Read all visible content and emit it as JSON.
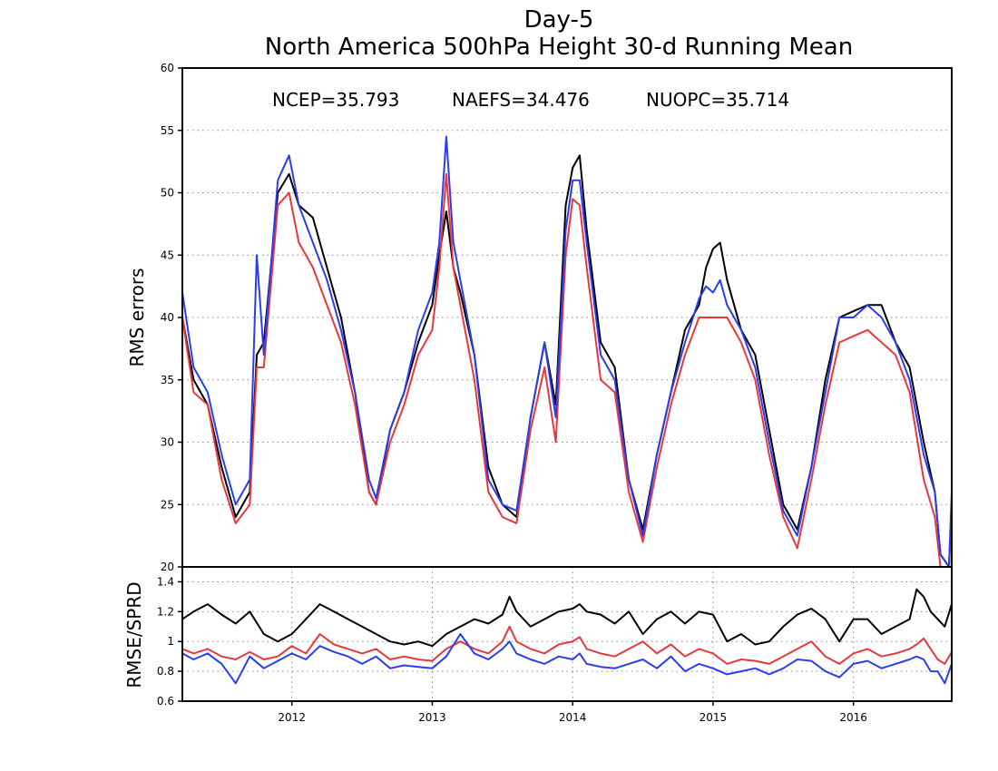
{
  "title_line1": "Day-5",
  "title_line2": "North America 500hPa Height 30-d Running Mean",
  "stats": [
    {
      "label": "NCEP=35.793",
      "color": "#000000"
    },
    {
      "label": "NAEFS=34.476",
      "color": "#e8383b"
    },
    {
      "label": "NUOPC=35.714",
      "color": "#2a3ef0"
    }
  ],
  "chart_data": [
    {
      "type": "line",
      "title": "North America 500hPa Height 30-d Running Mean",
      "ylabel": "RMS errors",
      "xlabel": "",
      "xlim": [
        2011.22,
        2016.7
      ],
      "ylim": [
        20,
        60
      ],
      "yticks": [
        "20",
        "25",
        "30",
        "35",
        "40",
        "45",
        "50",
        "55",
        "60"
      ],
      "grid": true,
      "series": [
        {
          "name": "NCEP",
          "color": "#000000",
          "x": [
            2011.22,
            2011.3,
            2011.4,
            2011.5,
            2011.6,
            2011.7,
            2011.75,
            2011.8,
            2011.9,
            2011.98,
            2012.05,
            2012.15,
            2012.25,
            2012.35,
            2012.45,
            2012.55,
            2012.6,
            2012.7,
            2012.8,
            2012.9,
            2013.0,
            2013.05,
            2013.1,
            2013.15,
            2013.2,
            2013.3,
            2013.4,
            2013.5,
            2013.6,
            2013.7,
            2013.8,
            2013.88,
            2013.95,
            2014.0,
            2014.05,
            2014.1,
            2014.2,
            2014.3,
            2014.4,
            2014.5,
            2014.6,
            2014.7,
            2014.8,
            2014.9,
            2014.95,
            2015.0,
            2015.05,
            2015.1,
            2015.2,
            2015.3,
            2015.4,
            2015.5,
            2015.6,
            2015.7,
            2015.8,
            2015.9,
            2016.0,
            2016.1,
            2016.2,
            2016.3,
            2016.4,
            2016.5,
            2016.58,
            2016.62,
            2016.65,
            2016.68,
            2016.7
          ],
          "y": [
            40,
            35,
            33,
            28,
            24,
            26,
            37,
            38,
            50,
            51.5,
            49,
            48,
            44,
            40,
            34,
            26,
            25,
            31,
            34,
            38,
            41,
            45,
            48.5,
            44,
            42,
            37,
            28,
            25,
            24,
            32,
            38,
            33,
            49,
            52,
            53,
            47,
            38,
            36,
            27,
            23,
            29,
            34,
            39,
            41,
            44,
            45.5,
            46,
            43,
            39,
            37,
            31,
            25,
            23,
            28,
            35,
            40,
            40.5,
            41,
            41,
            38,
            36,
            30,
            26,
            21,
            20.5,
            20,
            25
          ]
        },
        {
          "name": "NAEFS",
          "color": "#e8383b",
          "x": [
            2011.22,
            2011.3,
            2011.4,
            2011.5,
            2011.6,
            2011.7,
            2011.75,
            2011.8,
            2011.9,
            2011.98,
            2012.05,
            2012.15,
            2012.25,
            2012.35,
            2012.45,
            2012.55,
            2012.6,
            2012.7,
            2012.8,
            2012.9,
            2013.0,
            2013.05,
            2013.1,
            2013.15,
            2013.2,
            2013.3,
            2013.4,
            2013.5,
            2013.6,
            2013.7,
            2013.8,
            2013.88,
            2013.95,
            2014.0,
            2014.05,
            2014.1,
            2014.2,
            2014.3,
            2014.4,
            2014.5,
            2014.6,
            2014.7,
            2014.8,
            2014.9,
            2014.95,
            2015.0,
            2015.05,
            2015.1,
            2015.2,
            2015.3,
            2015.4,
            2015.5,
            2015.6,
            2015.7,
            2015.8,
            2015.9,
            2016.0,
            2016.1,
            2016.2,
            2016.3,
            2016.4,
            2016.5,
            2016.58,
            2016.62,
            2016.65,
            2016.68,
            2016.7
          ],
          "y": [
            40,
            34,
            33,
            27,
            23.5,
            25,
            36,
            36,
            49,
            50,
            46,
            44,
            41,
            38,
            33,
            26,
            25,
            30,
            33,
            37,
            39,
            44,
            51.5,
            44,
            41,
            35,
            26,
            24,
            23.5,
            31,
            36,
            30,
            45,
            49.5,
            49,
            44,
            35,
            34,
            26,
            22,
            28,
            33,
            37,
            40,
            40,
            40,
            40,
            40,
            38,
            35,
            29,
            24,
            21.5,
            27,
            33,
            38,
            38.5,
            39,
            38,
            37,
            34,
            27,
            24,
            20,
            19.5,
            19,
            24
          ]
        },
        {
          "name": "NUOPC",
          "color": "#2a3ef0",
          "x": [
            2011.22,
            2011.3,
            2011.4,
            2011.5,
            2011.6,
            2011.7,
            2011.75,
            2011.8,
            2011.9,
            2011.98,
            2012.05,
            2012.15,
            2012.25,
            2012.35,
            2012.45,
            2012.55,
            2012.6,
            2012.7,
            2012.8,
            2012.9,
            2013.0,
            2013.05,
            2013.1,
            2013.15,
            2013.2,
            2013.3,
            2013.4,
            2013.5,
            2013.6,
            2013.7,
            2013.8,
            2013.88,
            2013.95,
            2014.0,
            2014.05,
            2014.1,
            2014.2,
            2014.3,
            2014.4,
            2014.5,
            2014.6,
            2014.7,
            2014.8,
            2014.9,
            2014.95,
            2015.0,
            2015.05,
            2015.1,
            2015.2,
            2015.3,
            2015.4,
            2015.5,
            2015.6,
            2015.7,
            2015.8,
            2015.9,
            2016.0,
            2016.1,
            2016.2,
            2016.3,
            2016.4,
            2016.5,
            2016.58,
            2016.62,
            2016.65,
            2016.68,
            2016.7
          ],
          "y": [
            42,
            36,
            34,
            29,
            25,
            27,
            45,
            37,
            51,
            53,
            49,
            46,
            43,
            39,
            34,
            27,
            25.5,
            31,
            34,
            39,
            42,
            46,
            54.5,
            46,
            43,
            37,
            27,
            25,
            24.5,
            32,
            38,
            32,
            47,
            51,
            51,
            46,
            37,
            35,
            27,
            22.5,
            29,
            34,
            38,
            41.5,
            42.5,
            42,
            43,
            41,
            39,
            36,
            30,
            24.5,
            22.5,
            28,
            34,
            40,
            40,
            41,
            40,
            38,
            35,
            29,
            26,
            21,
            20.5,
            20,
            26
          ]
        }
      ]
    },
    {
      "type": "line",
      "title": "",
      "ylabel": "RMSE/SPRD",
      "xlabel": "",
      "xlim": [
        2011.22,
        2016.7
      ],
      "ylim": [
        0.6,
        1.5
      ],
      "yticks": [
        "0.6",
        "0.8",
        "1",
        "1.2",
        "1.4"
      ],
      "xticks": [
        "2012",
        "2013",
        "2014",
        "2015",
        "2016"
      ],
      "grid": true,
      "series": [
        {
          "name": "NCEP",
          "color": "#000000",
          "x": [
            2011.22,
            2011.3,
            2011.4,
            2011.5,
            2011.6,
            2011.7,
            2011.8,
            2011.9,
            2012.0,
            2012.1,
            2012.2,
            2012.3,
            2012.4,
            2012.5,
            2012.6,
            2012.7,
            2012.8,
            2012.9,
            2013.0,
            2013.1,
            2013.2,
            2013.3,
            2013.4,
            2013.5,
            2013.55,
            2013.6,
            2013.7,
            2013.8,
            2013.9,
            2014.0,
            2014.05,
            2014.1,
            2014.2,
            2014.3,
            2014.4,
            2014.5,
            2014.6,
            2014.7,
            2014.8,
            2014.9,
            2015.0,
            2015.1,
            2015.2,
            2015.3,
            2015.4,
            2015.5,
            2015.6,
            2015.7,
            2015.8,
            2015.9,
            2016.0,
            2016.1,
            2016.2,
            2016.3,
            2016.4,
            2016.45,
            2016.5,
            2016.55,
            2016.6,
            2016.65,
            2016.7
          ],
          "y": [
            1.15,
            1.2,
            1.25,
            1.18,
            1.12,
            1.2,
            1.05,
            1.0,
            1.05,
            1.15,
            1.25,
            1.2,
            1.15,
            1.1,
            1.05,
            1.0,
            0.98,
            1.0,
            0.97,
            1.05,
            1.1,
            1.15,
            1.12,
            1.18,
            1.3,
            1.2,
            1.1,
            1.15,
            1.2,
            1.22,
            1.25,
            1.2,
            1.18,
            1.12,
            1.2,
            1.05,
            1.15,
            1.2,
            1.12,
            1.2,
            1.18,
            1.0,
            1.05,
            0.98,
            1.0,
            1.1,
            1.18,
            1.22,
            1.15,
            1.0,
            1.15,
            1.15,
            1.05,
            1.1,
            1.15,
            1.35,
            1.3,
            1.2,
            1.15,
            1.1,
            1.25
          ]
        },
        {
          "name": "NAEFS",
          "color": "#e8383b",
          "x": [
            2011.22,
            2011.3,
            2011.4,
            2011.5,
            2011.6,
            2011.7,
            2011.8,
            2011.9,
            2012.0,
            2012.1,
            2012.2,
            2012.3,
            2012.4,
            2012.5,
            2012.6,
            2012.7,
            2012.8,
            2012.9,
            2013.0,
            2013.1,
            2013.2,
            2013.3,
            2013.4,
            2013.5,
            2013.55,
            2013.6,
            2013.7,
            2013.8,
            2013.9,
            2014.0,
            2014.05,
            2014.1,
            2014.2,
            2014.3,
            2014.4,
            2014.5,
            2014.6,
            2014.7,
            2014.8,
            2014.9,
            2015.0,
            2015.1,
            2015.2,
            2015.3,
            2015.4,
            2015.5,
            2015.6,
            2015.7,
            2015.8,
            2015.9,
            2016.0,
            2016.1,
            2016.2,
            2016.3,
            2016.4,
            2016.45,
            2016.5,
            2016.55,
            2016.6,
            2016.65,
            2016.7
          ],
          "y": [
            0.95,
            0.92,
            0.95,
            0.9,
            0.88,
            0.93,
            0.88,
            0.9,
            0.97,
            0.92,
            1.05,
            0.98,
            0.95,
            0.92,
            0.95,
            0.88,
            0.9,
            0.88,
            0.87,
            0.95,
            1.0,
            0.95,
            0.92,
            1.0,
            1.1,
            1.0,
            0.95,
            0.92,
            0.98,
            1.0,
            1.03,
            0.95,
            0.92,
            0.9,
            0.95,
            1.0,
            0.92,
            0.98,
            0.9,
            0.95,
            0.92,
            0.85,
            0.88,
            0.87,
            0.85,
            0.9,
            0.95,
            1.0,
            0.9,
            0.85,
            0.92,
            0.95,
            0.9,
            0.92,
            0.95,
            0.98,
            1.02,
            0.95,
            0.88,
            0.85,
            0.93
          ]
        },
        {
          "name": "NUOPC",
          "color": "#2a3ef0",
          "x": [
            2011.22,
            2011.3,
            2011.4,
            2011.5,
            2011.6,
            2011.7,
            2011.8,
            2011.9,
            2012.0,
            2012.1,
            2012.2,
            2012.3,
            2012.4,
            2012.5,
            2012.6,
            2012.7,
            2012.8,
            2012.9,
            2013.0,
            2013.1,
            2013.2,
            2013.3,
            2013.4,
            2013.5,
            2013.55,
            2013.6,
            2013.7,
            2013.8,
            2013.9,
            2014.0,
            2014.05,
            2014.1,
            2014.2,
            2014.3,
            2014.4,
            2014.5,
            2014.6,
            2014.7,
            2014.8,
            2014.9,
            2015.0,
            2015.1,
            2015.2,
            2015.3,
            2015.4,
            2015.5,
            2015.6,
            2015.7,
            2015.8,
            2015.9,
            2016.0,
            2016.1,
            2016.2,
            2016.3,
            2016.4,
            2016.45,
            2016.5,
            2016.55,
            2016.6,
            2016.65,
            2016.7
          ],
          "y": [
            0.92,
            0.88,
            0.92,
            0.85,
            0.72,
            0.9,
            0.82,
            0.87,
            0.92,
            0.88,
            0.97,
            0.93,
            0.9,
            0.85,
            0.9,
            0.82,
            0.84,
            0.83,
            0.82,
            0.9,
            1.05,
            0.92,
            0.88,
            0.95,
            1.0,
            0.92,
            0.88,
            0.85,
            0.9,
            0.88,
            0.92,
            0.85,
            0.83,
            0.82,
            0.85,
            0.88,
            0.82,
            0.9,
            0.8,
            0.85,
            0.82,
            0.78,
            0.8,
            0.82,
            0.78,
            0.82,
            0.88,
            0.87,
            0.8,
            0.76,
            0.85,
            0.87,
            0.82,
            0.85,
            0.88,
            0.9,
            0.88,
            0.8,
            0.8,
            0.72,
            0.85
          ]
        }
      ]
    }
  ]
}
